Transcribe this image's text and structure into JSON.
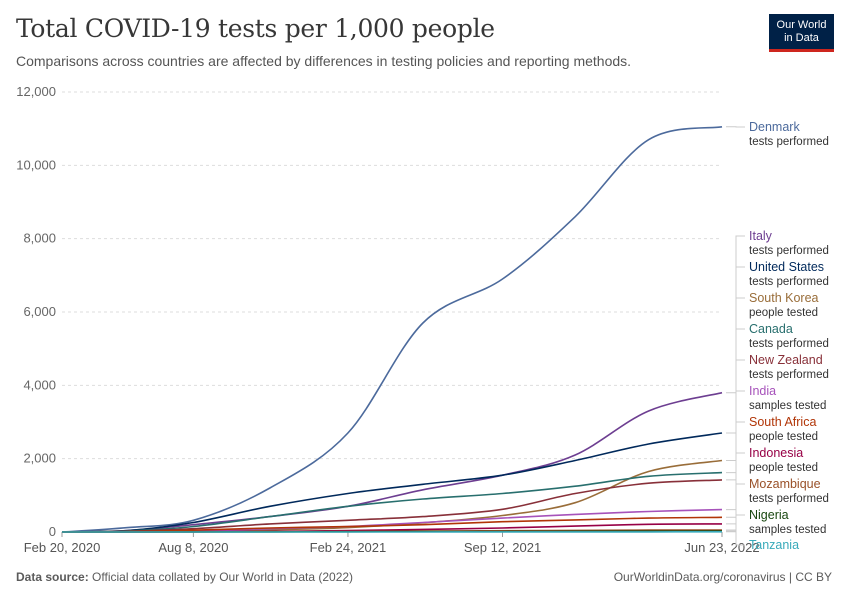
{
  "title": "Total COVID-19 tests per 1,000 people",
  "subtitle": "Comparisons across countries are affected by differences in testing policies and reporting methods.",
  "logo": {
    "line1": "Our World",
    "line2": "in Data"
  },
  "footer": {
    "source_label": "Data source:",
    "source_text": " Official data collated by Our World in Data (2022)",
    "right": "OurWorldinData.org/coronavirus | CC BY"
  },
  "chart_data": {
    "type": "line",
    "title": "Total COVID-19 tests per 1,000 people",
    "x_ticks": [
      "Feb 20, 2020",
      "Aug 8, 2020",
      "Feb 24, 2021",
      "Sep 12, 2021",
      "Jun 23, 2022"
    ],
    "x": [
      "2020-02-20",
      "2020-05-15",
      "2020-08-08",
      "2020-11-15",
      "2021-02-24",
      "2021-06-01",
      "2021-09-12",
      "2021-12-15",
      "2022-03-20",
      "2022-06-23"
    ],
    "y_ticks": [
      0,
      2000,
      4000,
      6000,
      8000,
      10000,
      12000
    ],
    "ylim": [
      0,
      12000
    ],
    "grid": true,
    "legend_placement": "right, line end labels",
    "series": [
      {
        "name": "Denmark",
        "measure": "tests performed",
        "color": "#4c6a9c",
        "values": [
          0,
          120,
          320,
          1200,
          2700,
          5700,
          6900,
          8600,
          10700,
          11050
        ]
      },
      {
        "name": "Italy",
        "measure": "tests performed",
        "color": "#6d3e91",
        "values": [
          0,
          40,
          200,
          420,
          700,
          1150,
          1550,
          2100,
          3300,
          3800
        ]
      },
      {
        "name": "United States",
        "measure": "tests performed",
        "color": "#00295b",
        "values": [
          0,
          40,
          260,
          700,
          1050,
          1300,
          1550,
          1950,
          2400,
          2700
        ]
      },
      {
        "name": "South Korea",
        "measure": "people tested",
        "color": "#996d39",
        "values": [
          0,
          10,
          30,
          60,
          120,
          250,
          450,
          800,
          1650,
          1950
        ]
      },
      {
        "name": "Canada",
        "measure": "tests performed",
        "color": "#286f6e",
        "values": [
          0,
          30,
          150,
          420,
          700,
          900,
          1050,
          1250,
          1520,
          1620
        ]
      },
      {
        "name": "New Zealand",
        "measure": "tests performed",
        "color": "#883039",
        "values": [
          0,
          20,
          90,
          220,
          320,
          420,
          620,
          1050,
          1330,
          1420
        ]
      },
      {
        "name": "India",
        "measure": "samples tested",
        "color": "#a652ba",
        "values": [
          0,
          2,
          20,
          90,
          150,
          260,
          380,
          480,
          560,
          610
        ]
      },
      {
        "name": "South Africa",
        "measure": "people tested",
        "color": "#b13507",
        "values": [
          0,
          8,
          50,
          110,
          150,
          200,
          280,
          330,
          380,
          400
        ]
      },
      {
        "name": "Indonesia",
        "measure": "people tested",
        "color": "#970046",
        "values": [
          0,
          1,
          5,
          20,
          40,
          70,
          110,
          160,
          210,
          220
        ]
      },
      {
        "name": "Mozambique",
        "measure": "tests performed",
        "color": "#9a5129",
        "values": [
          0,
          0.5,
          3,
          8,
          15,
          25,
          35,
          45,
          52,
          55
        ]
      },
      {
        "name": "Nigeria",
        "measure": "samples tested",
        "color": "#18470f",
        "values": [
          0,
          0.2,
          1.5,
          3,
          6,
          10,
          14,
          18,
          22,
          25
        ]
      },
      {
        "name": "Tanzania",
        "measure": "",
        "color": "#38aaba",
        "values": [
          0,
          0.05,
          0.1,
          0.2,
          0.5,
          1,
          2,
          3,
          4,
          5
        ]
      }
    ]
  }
}
